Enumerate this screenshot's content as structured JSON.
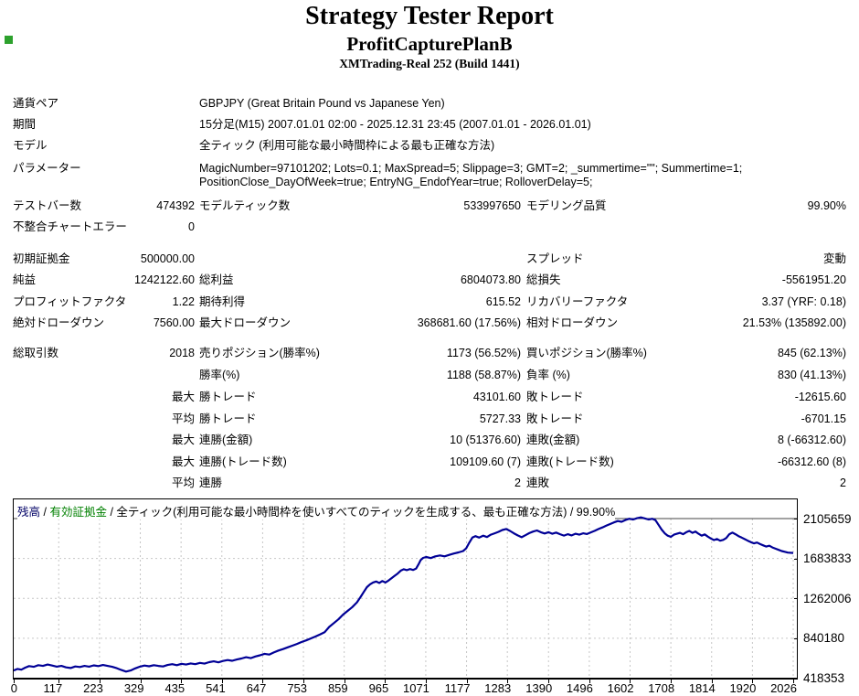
{
  "header": {
    "title": "Strategy Tester Report",
    "strategy": "ProfitCapturePlanB",
    "server": "XMTrading-Real 252 (Build 1441)"
  },
  "table": {
    "rows": [
      {
        "c1": "通貨ペア",
        "c2": "",
        "c3": "GBPJPY (Great Britain Pound vs Japanese Yen)",
        "c4": "",
        "c5": "",
        "c6": ""
      },
      {
        "c1": "期間",
        "c2": "",
        "c3": "15分足(M15) 2007.01.01 02:00 - 2025.12.31 23:45 (2007.01.01 - 2026.01.01)",
        "c4": "",
        "c5": "",
        "c6": ""
      },
      {
        "c1": "モデル",
        "c2": "",
        "c3": "全ティック (利用可能な最小時間枠による最も正確な方法)",
        "c4": "",
        "c5": "",
        "c6": ""
      },
      {
        "c1": "パラメーター",
        "c2": "",
        "c3": "MagicNumber=97101202; Lots=0.1; MaxSpread=5; Slippage=3; GMT=2; _summertime=\"\"; Summertime=1;",
        "c3b": "PositionClose_DayOfWeek=true; EntryNG_EndofYear=true; RolloverDelay=5;",
        "c4": "",
        "c5": "",
        "c6": ""
      },
      {
        "c1": "テストバー数",
        "c2": "474392",
        "c3": "モデルティック数",
        "c4": "533997650",
        "c5": "モデリング品質",
        "c6": "99.90%"
      },
      {
        "c1": "不整合チャートエラー",
        "c2": "0",
        "c3": "",
        "c4": "",
        "c5": "",
        "c6": ""
      },
      {
        "c1": "初期証拠金",
        "c2": "500000.00",
        "c3": "",
        "c4": "",
        "c5": "スプレッド",
        "c6": "変動"
      },
      {
        "c1": "純益",
        "c2": "1242122.60",
        "c3": "総利益",
        "c4": "6804073.80",
        "c5": "総損失",
        "c6": "-5561951.20"
      },
      {
        "c1": "プロフィットファクタ",
        "c2": "1.22",
        "c3": "期待利得",
        "c4": "615.52",
        "c5": "リカバリーファクタ",
        "c6": "3.37 (YRF: 0.18)"
      },
      {
        "c1": "絶対ドローダウン",
        "c2": "7560.00",
        "c3": "最大ドローダウン",
        "c4": "368681.60 (17.56%)",
        "c5": "相対ドローダウン",
        "c6": "21.53% (135892.00)"
      },
      {
        "c1": "総取引数",
        "c2": "2018",
        "c3": "売りポジション(勝率%)",
        "c4": "1173 (56.52%)",
        "c5": "買いポジション(勝率%)",
        "c6": "845 (62.13%)"
      },
      {
        "c1": "",
        "c2": "",
        "c3": "勝率(%)",
        "c4": "1188 (58.87%)",
        "c5": "負率 (%)",
        "c6": "830 (41.13%)"
      },
      {
        "c1": "",
        "c2": "最大",
        "c3": "勝トレード",
        "c4": "43101.60",
        "c5": "敗トレード",
        "c6": "-12615.60"
      },
      {
        "c1": "",
        "c2": "平均",
        "c3": "勝トレード",
        "c4": "5727.33",
        "c5": "敗トレード",
        "c6": "-6701.15"
      },
      {
        "c1": "",
        "c2": "最大",
        "c3": "連勝(金額)",
        "c4": "10 (51376.60)",
        "c5": "連敗(金額)",
        "c6": "8 (-66312.60)"
      },
      {
        "c1": "",
        "c2": "最大",
        "c3": "連勝(トレード数)",
        "c4": "109109.60 (7)",
        "c5": "連敗(トレード数)",
        "c6": "-66312.60 (8)"
      },
      {
        "c1": "",
        "c2": "平均",
        "c3": "連勝",
        "c4": "2",
        "c5": "連敗",
        "c6": "2"
      }
    ]
  },
  "chart_data": {
    "type": "line",
    "legend": {
      "balance": "残高",
      "separator": "/",
      "equity": "有効証拠金",
      "model": "全ティック(利用可能な最小時間枠を使いすべてのティックを生成する、最も正確な方法)",
      "quality": "99.90%"
    },
    "xlabel": "",
    "ylabel": "",
    "xlim": [
      0,
      2026
    ],
    "ylim": [
      418353,
      2105659
    ],
    "x_ticks": [
      0,
      117,
      223,
      329,
      435,
      541,
      647,
      753,
      859,
      965,
      1071,
      1177,
      1283,
      1390,
      1496,
      1602,
      1708,
      1814,
      1920,
      2026
    ],
    "y_ticks": [
      418353,
      840180,
      1262006,
      1683833,
      2105659
    ],
    "grid": "dashed",
    "line_color": "#000096",
    "series": [
      {
        "name": "残高",
        "points": [
          [
            0,
            500000
          ],
          [
            10,
            516000
          ],
          [
            20,
            508000
          ],
          [
            30,
            530000
          ],
          [
            40,
            546000
          ],
          [
            52,
            538000
          ],
          [
            64,
            556000
          ],
          [
            76,
            548000
          ],
          [
            88,
            562000
          ],
          [
            100,
            552000
          ],
          [
            112,
            540000
          ],
          [
            124,
            548000
          ],
          [
            136,
            532000
          ],
          [
            148,
            526000
          ],
          [
            160,
            542000
          ],
          [
            172,
            536000
          ],
          [
            184,
            548000
          ],
          [
            196,
            540000
          ],
          [
            208,
            554000
          ],
          [
            220,
            546000
          ],
          [
            232,
            558000
          ],
          [
            244,
            548000
          ],
          [
            256,
            538000
          ],
          [
            268,
            524000
          ],
          [
            280,
            504000
          ],
          [
            292,
            488000
          ],
          [
            304,
            500000
          ],
          [
            316,
            522000
          ],
          [
            328,
            540000
          ],
          [
            340,
            552000
          ],
          [
            352,
            544000
          ],
          [
            364,
            556000
          ],
          [
            376,
            548000
          ],
          [
            388,
            542000
          ],
          [
            400,
            558000
          ],
          [
            412,
            566000
          ],
          [
            424,
            556000
          ],
          [
            436,
            570000
          ],
          [
            448,
            562000
          ],
          [
            460,
            574000
          ],
          [
            472,
            566000
          ],
          [
            484,
            580000
          ],
          [
            496,
            572000
          ],
          [
            508,
            588000
          ],
          [
            520,
            596000
          ],
          [
            532,
            586000
          ],
          [
            544,
            600000
          ],
          [
            556,
            610000
          ],
          [
            568,
            602000
          ],
          [
            580,
            616000
          ],
          [
            592,
            626000
          ],
          [
            604,
            640000
          ],
          [
            616,
            630000
          ],
          [
            628,
            648000
          ],
          [
            640,
            660000
          ],
          [
            652,
            676000
          ],
          [
            664,
            668000
          ],
          [
            676,
            690000
          ],
          [
            688,
            710000
          ],
          [
            700,
            726000
          ],
          [
            712,
            744000
          ],
          [
            724,
            762000
          ],
          [
            736,
            780000
          ],
          [
            748,
            800000
          ],
          [
            760,
            818000
          ],
          [
            772,
            838000
          ],
          [
            784,
            858000
          ],
          [
            796,
            880000
          ],
          [
            808,
            904000
          ],
          [
            820,
            960000
          ],
          [
            832,
            1000000
          ],
          [
            844,
            1040000
          ],
          [
            856,
            1090000
          ],
          [
            868,
            1130000
          ],
          [
            880,
            1170000
          ],
          [
            892,
            1220000
          ],
          [
            902,
            1280000
          ],
          [
            910,
            1330000
          ],
          [
            918,
            1380000
          ],
          [
            926,
            1410000
          ],
          [
            934,
            1430000
          ],
          [
            942,
            1440000
          ],
          [
            950,
            1425000
          ],
          [
            958,
            1445000
          ],
          [
            966,
            1430000
          ],
          [
            974,
            1450000
          ],
          [
            982,
            1475000
          ],
          [
            990,
            1500000
          ],
          [
            998,
            1525000
          ],
          [
            1006,
            1555000
          ],
          [
            1014,
            1570000
          ],
          [
            1022,
            1560000
          ],
          [
            1030,
            1572000
          ],
          [
            1038,
            1562000
          ],
          [
            1046,
            1578000
          ],
          [
            1052,
            1620000
          ],
          [
            1058,
            1668000
          ],
          [
            1064,
            1690000
          ],
          [
            1072,
            1700000
          ],
          [
            1084,
            1688000
          ],
          [
            1096,
            1706000
          ],
          [
            1108,
            1716000
          ],
          [
            1120,
            1706000
          ],
          [
            1132,
            1722000
          ],
          [
            1144,
            1736000
          ],
          [
            1156,
            1748000
          ],
          [
            1168,
            1762000
          ],
          [
            1176,
            1790000
          ],
          [
            1184,
            1850000
          ],
          [
            1192,
            1905000
          ],
          [
            1200,
            1920000
          ],
          [
            1210,
            1905000
          ],
          [
            1220,
            1925000
          ],
          [
            1230,
            1910000
          ],
          [
            1240,
            1935000
          ],
          [
            1250,
            1950000
          ],
          [
            1260,
            1965000
          ],
          [
            1270,
            1985000
          ],
          [
            1280,
            1995000
          ],
          [
            1290,
            1975000
          ],
          [
            1300,
            1950000
          ],
          [
            1310,
            1928000
          ],
          [
            1320,
            1908000
          ],
          [
            1330,
            1930000
          ],
          [
            1340,
            1952000
          ],
          [
            1350,
            1968000
          ],
          [
            1360,
            1980000
          ],
          [
            1370,
            1962000
          ],
          [
            1380,
            1948000
          ],
          [
            1390,
            1962000
          ],
          [
            1400,
            1945000
          ],
          [
            1410,
            1958000
          ],
          [
            1420,
            1940000
          ],
          [
            1430,
            1926000
          ],
          [
            1440,
            1940000
          ],
          [
            1450,
            1928000
          ],
          [
            1460,
            1945000
          ],
          [
            1470,
            1935000
          ],
          [
            1480,
            1950000
          ],
          [
            1490,
            1942000
          ],
          [
            1500,
            1960000
          ],
          [
            1510,
            1976000
          ],
          [
            1520,
            1995000
          ],
          [
            1530,
            2012000
          ],
          [
            1540,
            2030000
          ],
          [
            1550,
            2048000
          ],
          [
            1560,
            2065000
          ],
          [
            1570,
            2080000
          ],
          [
            1580,
            2072000
          ],
          [
            1590,
            2090000
          ],
          [
            1600,
            2104000
          ],
          [
            1610,
            2096000
          ],
          [
            1620,
            2110000
          ],
          [
            1630,
            2118000
          ],
          [
            1640,
            2108000
          ],
          [
            1650,
            2096000
          ],
          [
            1660,
            2104000
          ],
          [
            1668,
            2088000
          ],
          [
            1676,
            2040000
          ],
          [
            1684,
            1990000
          ],
          [
            1692,
            1950000
          ],
          [
            1700,
            1925000
          ],
          [
            1708,
            1912000
          ],
          [
            1716,
            1935000
          ],
          [
            1724,
            1945000
          ],
          [
            1732,
            1955000
          ],
          [
            1740,
            1940000
          ],
          [
            1748,
            1962000
          ],
          [
            1756,
            1975000
          ],
          [
            1764,
            1955000
          ],
          [
            1772,
            1968000
          ],
          [
            1780,
            1945000
          ],
          [
            1788,
            1925000
          ],
          [
            1796,
            1938000
          ],
          [
            1804,
            1915000
          ],
          [
            1812,
            1895000
          ],
          [
            1820,
            1878000
          ],
          [
            1828,
            1890000
          ],
          [
            1836,
            1872000
          ],
          [
            1844,
            1880000
          ],
          [
            1852,
            1900000
          ],
          [
            1860,
            1940000
          ],
          [
            1868,
            1958000
          ],
          [
            1876,
            1940000
          ],
          [
            1884,
            1920000
          ],
          [
            1892,
            1905000
          ],
          [
            1900,
            1888000
          ],
          [
            1908,
            1872000
          ],
          [
            1916,
            1856000
          ],
          [
            1924,
            1844000
          ],
          [
            1932,
            1852000
          ],
          [
            1940,
            1836000
          ],
          [
            1948,
            1822000
          ],
          [
            1956,
            1810000
          ],
          [
            1964,
            1818000
          ],
          [
            1972,
            1800000
          ],
          [
            1980,
            1788000
          ],
          [
            1988,
            1775000
          ],
          [
            1996,
            1762000
          ],
          [
            2004,
            1755000
          ],
          [
            2012,
            1746000
          ],
          [
            2026,
            1742123
          ]
        ]
      }
    ]
  },
  "layout": {
    "row_tops": [
      107,
      130,
      153,
      178,
      219,
      242,
      277,
      300,
      324,
      347,
      380,
      404,
      428,
      452,
      475,
      499,
      522
    ]
  }
}
